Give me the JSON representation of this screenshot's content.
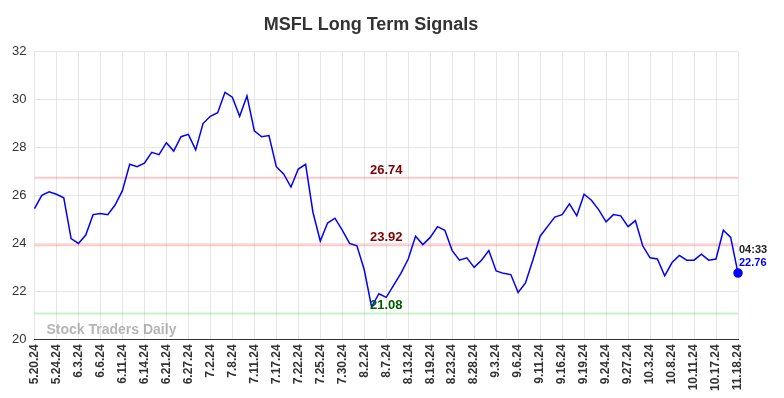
{
  "chart_data": {
    "type": "line",
    "title": "MSFL Long Term Signals",
    "watermark": "Stock Traders Daily",
    "categories": [
      "5.20.24",
      null,
      null,
      "5.24.24",
      null,
      null,
      "6.3.24",
      null,
      null,
      "6.6.24",
      null,
      null,
      "6.11.24",
      null,
      null,
      "6.14.24",
      null,
      null,
      "6.21.24",
      null,
      null,
      "6.27.24",
      null,
      null,
      "7.2.24",
      null,
      null,
      "7.8.24",
      null,
      null,
      "7.11.24",
      null,
      null,
      "7.17.24",
      null,
      null,
      "7.22.24",
      null,
      null,
      "7.25.24",
      null,
      null,
      "7.30.24",
      null,
      null,
      "8.2.24",
      null,
      null,
      "8.7.24",
      null,
      null,
      "8.13.24",
      null,
      null,
      "8.19.24",
      null,
      null,
      "8.23.24",
      null,
      null,
      "8.28.24",
      null,
      null,
      "9.3.24",
      null,
      null,
      "9.6.24",
      null,
      null,
      "9.11.24",
      null,
      null,
      "9.16.24",
      null,
      null,
      "9.19.24",
      null,
      null,
      "9.24.24",
      null,
      null,
      "9.27.24",
      null,
      null,
      "10.3.24",
      null,
      null,
      "10.8.24",
      null,
      null,
      "10.11.24",
      null,
      null,
      "10.17.24",
      null,
      null,
      "11.18.24"
    ],
    "values": [
      25.45,
      26.0,
      26.15,
      26.05,
      25.9,
      24.2,
      24.0,
      24.35,
      25.2,
      25.25,
      25.2,
      25.6,
      26.2,
      27.3,
      27.2,
      27.35,
      27.8,
      27.7,
      28.2,
      27.85,
      28.45,
      28.55,
      27.9,
      29.0,
      29.3,
      29.45,
      30.3,
      30.1,
      29.3,
      30.15,
      28.7,
      28.45,
      28.5,
      27.2,
      26.9,
      26.35,
      27.1,
      27.3,
      25.3,
      24.1,
      24.85,
      25.05,
      24.55,
      24.0,
      23.9,
      22.9,
      21.35,
      21.9,
      21.75,
      22.25,
      22.75,
      23.35,
      24.3,
      23.95,
      24.25,
      24.7,
      24.55,
      23.7,
      23.3,
      23.4,
      23.0,
      23.3,
      23.7,
      22.85,
      22.75,
      22.7,
      21.95,
      22.35,
      23.3,
      24.3,
      24.7,
      25.1,
      25.2,
      25.65,
      25.15,
      26.05,
      25.8,
      25.4,
      24.9,
      25.2,
      25.15,
      24.7,
      24.95,
      23.9,
      23.4,
      23.35,
      22.65,
      23.2,
      23.5,
      23.3,
      23.3,
      23.55,
      23.3,
      23.35,
      24.55,
      24.25,
      22.76
    ],
    "color": "#0000ff",
    "last_point_time": "04:33",
    "annotations": [
      {
        "value": 26.74,
        "color": "#ff0000"
      },
      {
        "value": 23.92,
        "color": "#ff0000"
      },
      {
        "value": 21.08,
        "color": "#00cc00"
      }
    ],
    "ylim": [
      20,
      32
    ],
    "yticks": [
      20,
      22,
      24,
      26,
      28,
      30,
      32
    ],
    "grid": true
  }
}
